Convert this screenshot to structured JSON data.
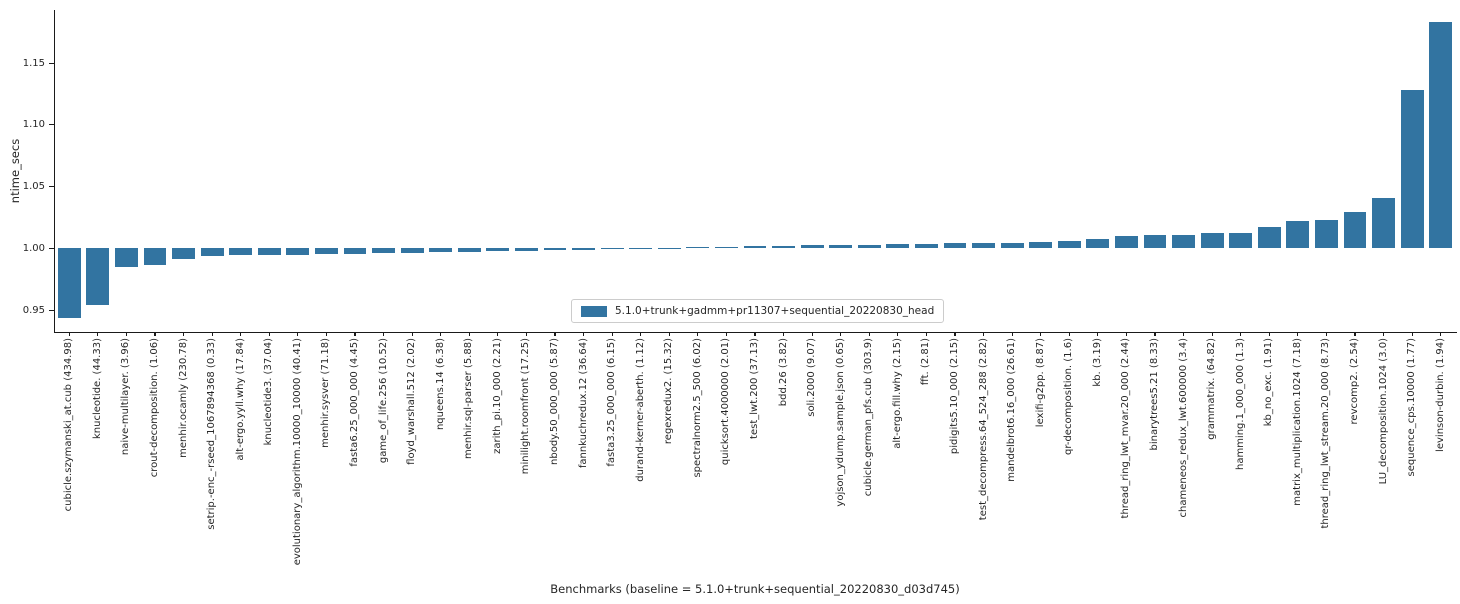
{
  "figure": {
    "background": "#ffffff",
    "text_color": "#262626",
    "spine_color": "#1a1a1a"
  },
  "legend": {
    "label": "5.1.0+trunk+gadmm+pr11307+sequential_20220830_head",
    "swatch_color": "#3274a1"
  },
  "chart_data": {
    "type": "bar",
    "title": "",
    "xlabel": "Benchmarks (baseline = 5.1.0+trunk+sequential_20220830_d03d745)",
    "ylabel": "ntime_secs",
    "ylim": [
      0.933,
      1.193
    ],
    "yticks": [
      0.95,
      1.0,
      1.05,
      1.1,
      1.15
    ],
    "ytick_labels": [
      "0.95",
      "1.00",
      "1.05",
      "1.10",
      "1.15"
    ],
    "baseline": 1.0,
    "grid": false,
    "legend_position": "lower center",
    "bar_color": "#3274a1",
    "categories": [
      "cubicle.szymanski_at.cub (434.98)",
      "knucleotide. (44.33)",
      "naive-multilayer. (3.96)",
      "crout-decomposition. (1.06)",
      "menhir.ocamly (230.78)",
      "setrip.-enc_-rseed_1067894368 (0.33)",
      "alt-ergo.yyll.why (17.84)",
      "knucleotide3. (37.04)",
      "evolutionary_algorithm.10000_10000 (40.41)",
      "menhir.sysver (71.18)",
      "fasta6.25_000_000 (4.45)",
      "game_of_life.256 (10.52)",
      "floyd_warshall.512 (2.02)",
      "nqueens.14 (6.38)",
      "menhir.sql-parser (5.88)",
      "zarith_pi.10_000 (2.21)",
      "minilight.roomfront (17.25)",
      "nbody.50_000_000 (5.87)",
      "fannkuchredux.12 (36.64)",
      "fasta3.25_000_000 (6.15)",
      "durand-kerner-aberth. (1.12)",
      "regexredux2. (15.32)",
      "spectralnorm2.5_500 (6.02)",
      "quicksort.4000000 (2.01)",
      "test_lwt.200 (37.13)",
      "bdd.26 (3.82)",
      "soli.2000 (9.07)",
      "yojson_ydump.sample.json (0.65)",
      "cubicle.german_pfs.cub (303.9)",
      "alt-ergo.fill.why (2.15)",
      "fft. (2.81)",
      "pidigits5.10_000 (2.15)",
      "test_decompress.64_524_288 (2.82)",
      "mandelbrot6.16_000 (26.61)",
      "lexifi-g2pp. (8.87)",
      "qr-decomposition. (1.6)",
      "kb. (3.19)",
      "thread_ring_lwt_mvar.20_000 (2.44)",
      "binarytrees5.21 (8.33)",
      "chameneos_redux_lwt.600000 (3.4)",
      "grammatrix. (64.82)",
      "hamming.1_000_000 (1.3)",
      "kb_no_exc. (1.91)",
      "matrix_multiplication.1024 (7.18)",
      "thread_ring_lwt_stream.20_000 (8.73)",
      "revcomp2. (2.54)",
      "LU_decomposition.1024 (3.0)",
      "sequence_cps.10000 (1.77)",
      "levinson-durbin. (1.94)"
    ],
    "series": [
      {
        "name": "5.1.0+trunk+gadmm+pr11307+sequential_20220830_head",
        "values": [
          0.944,
          0.9545,
          0.9845,
          0.9865,
          0.9915,
          0.9935,
          0.9945,
          0.9948,
          0.995,
          0.9952,
          0.9958,
          0.9962,
          0.9966,
          0.997,
          0.9973,
          0.9977,
          0.998,
          0.9983,
          0.9987,
          0.9992,
          0.9998,
          1.0004,
          1.001,
          1.0014,
          1.0017,
          1.002,
          1.0024,
          1.0027,
          1.003,
          1.0033,
          1.0036,
          1.004,
          1.0043,
          1.0046,
          1.005,
          1.0056,
          1.0075,
          1.0104,
          1.0106,
          1.011,
          1.0124,
          1.0126,
          1.017,
          1.0224,
          1.0226,
          1.0295,
          1.0405,
          1.1285,
          1.1835
        ]
      }
    ]
  }
}
